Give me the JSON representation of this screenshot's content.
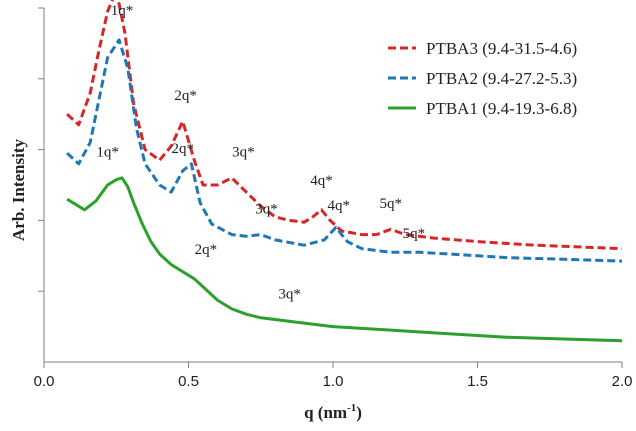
{
  "chart_data": {
    "type": "line",
    "title": "",
    "xlabel": "q (nm",
    "xlabel_sup": "-1",
    "xlabel_close": ")",
    "ylabel": "Arb. Intensity",
    "xlim": [
      0.0,
      2.0
    ],
    "ylim": [
      0,
      10
    ],
    "x_ticks": [
      0.0,
      0.5,
      1.0,
      1.5,
      2.0
    ],
    "x_tick_labels": [
      "0.0",
      "0.5",
      "1.0",
      "1.5",
      "2.0"
    ],
    "y_ticks": [
      2,
      4,
      6,
      8,
      10
    ],
    "y_tick_labels": [],
    "grid": false,
    "legend_position": "top-right",
    "series": [
      {
        "name": "PTBA3 (9.4-31.5-4.6)",
        "color": "#d62728",
        "dash": "dashed",
        "x": [
          0.08,
          0.12,
          0.16,
          0.19,
          0.22,
          0.25,
          0.28,
          0.31,
          0.35,
          0.4,
          0.44,
          0.48,
          0.52,
          0.55,
          0.6,
          0.65,
          0.7,
          0.75,
          0.8,
          0.85,
          0.9,
          0.93,
          0.96,
          0.99,
          1.03,
          1.1,
          1.15,
          1.2,
          1.25,
          1.35,
          1.5,
          1.7,
          1.85,
          2.0
        ],
        "y": [
          7.0,
          6.7,
          7.6,
          8.8,
          9.9,
          10.5,
          9.3,
          7.3,
          6.0,
          5.7,
          6.1,
          6.8,
          5.7,
          5.0,
          5.0,
          5.2,
          4.8,
          4.4,
          4.1,
          4.0,
          3.95,
          4.1,
          4.3,
          4.0,
          3.7,
          3.6,
          3.6,
          3.75,
          3.6,
          3.5,
          3.4,
          3.3,
          3.25,
          3.2
        ]
      },
      {
        "name": "PTBA2 (9.4-27.2-5.3)",
        "color": "#1f77b4",
        "dash": "dashed",
        "x": [
          0.08,
          0.12,
          0.16,
          0.19,
          0.22,
          0.26,
          0.29,
          0.32,
          0.35,
          0.4,
          0.44,
          0.48,
          0.51,
          0.54,
          0.58,
          0.65,
          0.7,
          0.75,
          0.8,
          0.9,
          0.97,
          1.01,
          1.05,
          1.1,
          1.2,
          1.3,
          1.4,
          1.6,
          1.8,
          2.0
        ],
        "y": [
          5.9,
          5.6,
          6.2,
          7.4,
          8.6,
          9.1,
          8.3,
          6.6,
          5.6,
          5.0,
          4.8,
          5.4,
          5.6,
          4.5,
          3.9,
          3.6,
          3.55,
          3.6,
          3.45,
          3.3,
          3.45,
          3.8,
          3.4,
          3.2,
          3.1,
          3.1,
          3.05,
          2.95,
          2.9,
          2.85
        ]
      },
      {
        "name": "PTBA1 (9.4-19.3-6.8)",
        "color": "#2ca02c",
        "dash": "solid",
        "x": [
          0.08,
          0.1,
          0.14,
          0.18,
          0.22,
          0.25,
          0.27,
          0.29,
          0.31,
          0.34,
          0.37,
          0.4,
          0.44,
          0.48,
          0.52,
          0.56,
          0.6,
          0.65,
          0.7,
          0.75,
          0.8,
          0.9,
          1.0,
          1.1,
          1.2,
          1.4,
          1.6,
          1.8,
          2.0
        ],
        "y": [
          4.6,
          4.5,
          4.3,
          4.55,
          5.0,
          5.15,
          5.2,
          4.95,
          4.5,
          3.9,
          3.4,
          3.05,
          2.75,
          2.55,
          2.35,
          2.05,
          1.75,
          1.5,
          1.35,
          1.25,
          1.2,
          1.1,
          1.0,
          0.95,
          0.9,
          0.8,
          0.7,
          0.65,
          0.6
        ]
      }
    ],
    "annotations": [
      {
        "text": "1q*",
        "x": 0.26,
        "y": 11.1
      },
      {
        "text": "2q*",
        "x": 0.49,
        "y": 7.4
      },
      {
        "text": "3q*",
        "x": 0.69,
        "y": 5.8
      },
      {
        "text": "4q*",
        "x": 0.96,
        "y": 5.0
      },
      {
        "text": "5q*",
        "x": 1.2,
        "y": 4.35
      },
      {
        "text": "1q*",
        "x": 0.27,
        "y": 9.8
      },
      {
        "text": "2q*",
        "x": 0.48,
        "y": 5.9
      },
      {
        "text": "3q*",
        "x": 0.77,
        "y": 4.2
      },
      {
        "text": "4q*",
        "x": 1.02,
        "y": 4.3
      },
      {
        "text": "5q*",
        "x": 1.28,
        "y": 3.5
      },
      {
        "text": "1q*",
        "x": 0.22,
        "y": 5.8
      },
      {
        "text": "2q*",
        "x": 0.56,
        "y": 3.05
      },
      {
        "text": "3q*",
        "x": 0.85,
        "y": 1.8
      }
    ]
  }
}
